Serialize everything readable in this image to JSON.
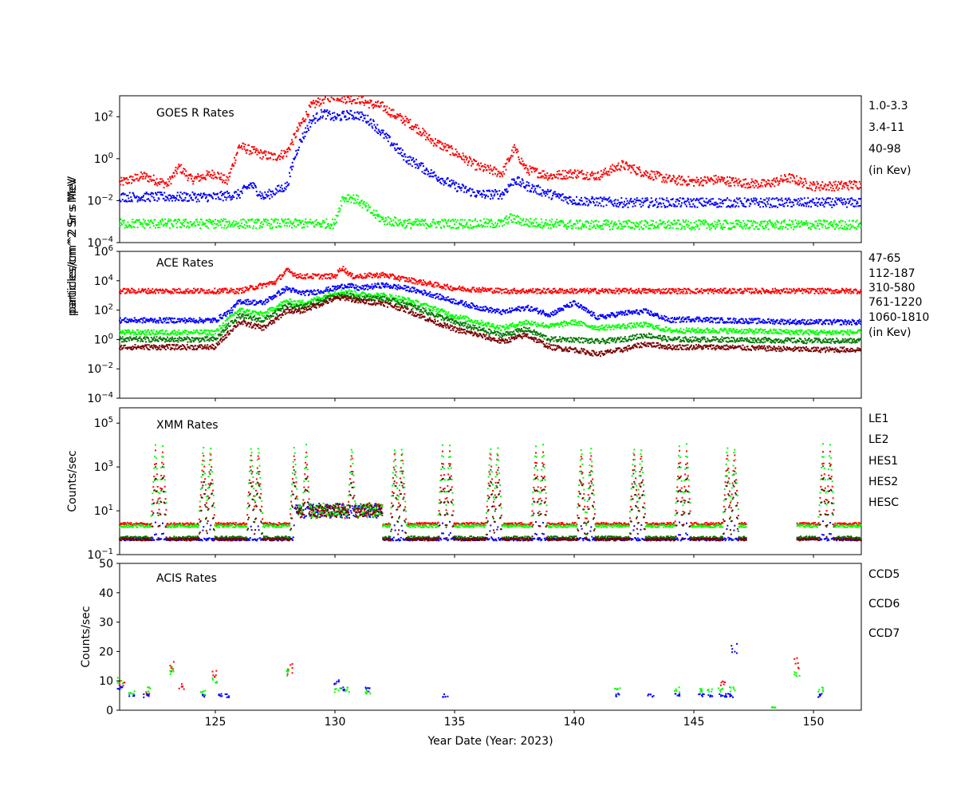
{
  "chart_data": [
    {
      "type": "scatter",
      "panel": "goes",
      "title": "GOES R Rates",
      "ylabel": "particles/cm^2 Sr s MeV",
      "yscale": "log",
      "ylim_exp": [
        -4,
        3
      ],
      "yticks_exp": [
        -4,
        -2,
        0,
        2
      ],
      "xlim": [
        121,
        152
      ],
      "legend": [
        "1.0-3.3",
        "3.4-11",
        "40-98"
      ],
      "legend_note": "(in Kev)",
      "colors": [
        "#ff0000",
        "#0000ff",
        "#00ff00"
      ],
      "series": [
        {
          "name": "1.0-3.3",
          "x": [
            121,
            122,
            123,
            123.5,
            124,
            125,
            125.5,
            126,
            127,
            127.5,
            128,
            128.5,
            129,
            129.5,
            130,
            130.5,
            131,
            131.5,
            132,
            132.5,
            133,
            133.5,
            134,
            135,
            136,
            137,
            137.5,
            138,
            139,
            140,
            141,
            142,
            143,
            144,
            145,
            146,
            147,
            148,
            149,
            150,
            151,
            152
          ],
          "y": [
            0.07,
            0.15,
            0.06,
            0.4,
            0.1,
            0.2,
            0.08,
            4,
            1.5,
            1.2,
            2,
            30,
            300,
            700,
            1000,
            700,
            700,
            400,
            300,
            120,
            60,
            25,
            8,
            2,
            0.4,
            0.2,
            3,
            0.3,
            0.15,
            0.2,
            0.15,
            0.5,
            0.2,
            0.1,
            0.08,
            0.1,
            0.07,
            0.06,
            0.12,
            0.05,
            0.05,
            0.06
          ]
        },
        {
          "name": "3.4-11",
          "x": [
            121,
            125,
            126,
            126.5,
            127,
            128,
            128.3,
            128.5,
            129,
            129.5,
            130,
            130.5,
            131,
            131.5,
            132,
            132.5,
            133,
            133.5,
            134,
            135,
            136,
            137,
            137.5,
            138,
            139,
            140,
            142,
            145,
            148,
            152
          ],
          "y": [
            0.015,
            0.015,
            0.02,
            0.06,
            0.015,
            0.05,
            1,
            5,
            60,
            150,
            90,
            120,
            120,
            60,
            15,
            4,
            1,
            0.5,
            0.2,
            0.05,
            0.02,
            0.02,
            0.1,
            0.05,
            0.02,
            0.01,
            0.008,
            0.008,
            0.008,
            0.008
          ]
        },
        {
          "name": "40-98",
          "x": [
            121,
            125,
            128,
            130,
            130.3,
            130.6,
            131,
            131.5,
            132,
            133,
            135,
            137,
            137.3,
            138,
            140,
            145,
            152
          ],
          "y": [
            0.0008,
            0.0008,
            0.0008,
            0.0008,
            0.012,
            0.015,
            0.01,
            0.003,
            0.0012,
            0.0008,
            0.0008,
            0.0008,
            0.0015,
            0.0009,
            0.0007,
            0.0007,
            0.0007
          ]
        }
      ]
    },
    {
      "type": "scatter",
      "panel": "ace",
      "title": "ACE Rates",
      "ylabel": "particles/cm^2 Sr s MeV",
      "yscale": "log",
      "ylim_exp": [
        -4,
        6
      ],
      "yticks_exp": [
        -4,
        -2,
        0,
        2,
        4,
        6
      ],
      "xlim": [
        121,
        152
      ],
      "legend": [
        "47-65",
        "112-187",
        "310-580",
        "761-1220",
        "1060-1810"
      ],
      "legend_note": "(in Kev)",
      "colors": [
        "#ff0000",
        "#0000ff",
        "#00ff00",
        "#007700",
        "#7a0000"
      ],
      "series": [
        {
          "name": "47-65",
          "x": [
            121,
            125,
            126,
            127,
            127.5,
            128,
            128.5,
            129,
            130,
            130.3,
            130.7,
            131,
            132,
            133,
            134,
            135,
            136,
            137,
            138,
            140,
            145,
            146,
            152
          ],
          "y": [
            2000,
            2000,
            2000,
            5000,
            8000,
            50000,
            20000,
            20000,
            20000,
            80000,
            20000,
            20000,
            25000,
            12000,
            6000,
            3000,
            2500,
            2000,
            2000,
            2000,
            2000,
            2000,
            2000
          ]
        },
        {
          "name": "112-187",
          "x": [
            121,
            125,
            125.7,
            126,
            127,
            127.5,
            128,
            128.5,
            129,
            130,
            130.5,
            131,
            132,
            133,
            134,
            135,
            136,
            137,
            138,
            139,
            140,
            141,
            142,
            143,
            144,
            145,
            146,
            150,
            152
          ],
          "y": [
            20,
            20,
            100,
            400,
            300,
            1000,
            3000,
            1500,
            1500,
            3000,
            5000,
            3000,
            5000,
            3000,
            1200,
            400,
            150,
            70,
            150,
            50,
            300,
            30,
            60,
            80,
            20,
            25,
            20,
            15,
            15
          ]
        },
        {
          "name": "310-580",
          "x": [
            121,
            125,
            125.7,
            126,
            127,
            127.5,
            128,
            128.5,
            129,
            130,
            130.5,
            131,
            132,
            133,
            134,
            135,
            136,
            137,
            138,
            139,
            140,
            141,
            142,
            143,
            144,
            146,
            150,
            152
          ],
          "y": [
            3,
            3,
            40,
            100,
            50,
            150,
            400,
            300,
            400,
            1500,
            1800,
            1200,
            1000,
            500,
            150,
            40,
            15,
            6,
            15,
            8,
            15,
            6,
            8,
            10,
            4,
            4,
            3,
            3
          ]
        },
        {
          "name": "761-1220",
          "x": [
            121,
            125,
            125.7,
            126,
            127,
            127.5,
            128,
            128.5,
            129,
            130,
            130.5,
            131,
            132,
            133,
            134,
            135,
            136,
            137,
            138,
            139,
            140,
            141,
            142,
            143,
            144,
            146,
            150,
            152
          ],
          "y": [
            1,
            1,
            15,
            40,
            20,
            60,
            200,
            150,
            250,
            900,
            1000,
            700,
            600,
            250,
            60,
            15,
            5,
            2,
            5,
            1,
            1,
            0.7,
            1,
            2,
            1,
            1,
            0.8,
            0.8
          ]
        },
        {
          "name": "1060-1810",
          "x": [
            121,
            125,
            125.7,
            126,
            127,
            127.5,
            128,
            128.5,
            129,
            130,
            130.5,
            131,
            132,
            133,
            134,
            135,
            136,
            137,
            138,
            139,
            140,
            141,
            142,
            143,
            144,
            146,
            150,
            152
          ],
          "y": [
            0.3,
            0.3,
            5,
            15,
            6,
            20,
            100,
            80,
            150,
            600,
            700,
            400,
            300,
            100,
            20,
            5,
            2,
            0.7,
            2,
            0.3,
            0.2,
            0.1,
            0.2,
            0.5,
            0.3,
            0.3,
            0.2,
            0.2
          ]
        }
      ]
    },
    {
      "type": "scatter",
      "panel": "xmm",
      "title": "XMM Rates",
      "ylabel": "Counts/sec",
      "yscale": "log",
      "ylim_exp": [
        -1,
        5.7
      ],
      "yticks_exp": [
        -1,
        1,
        3,
        5
      ],
      "xlim": [
        121,
        152
      ],
      "legend": [
        "LE1",
        "LE2",
        "HES1",
        "HES2",
        "HESC"
      ],
      "colors": [
        "#ff0000",
        "#0000ff",
        "#00ff00",
        "#007700",
        "#7a0000"
      ],
      "spike_days": [
        122.5,
        122.8,
        124.5,
        124.8,
        126.5,
        126.8,
        128.3,
        128.8,
        130.7,
        132.5,
        132.8,
        134.5,
        134.8,
        136.5,
        136.8,
        138.4,
        138.7,
        140.3,
        140.7,
        142.5,
        142.8,
        144.4,
        144.7,
        146.4,
        146.7,
        150.4,
        150.7
      ],
      "series": [
        {
          "name": "LE1",
          "baseline": 2.5,
          "peak": 5000
        },
        {
          "name": "LE2",
          "baseline": 0.5,
          "peak": 3
        },
        {
          "name": "HES1",
          "baseline": 2.0,
          "peak": 10000
        },
        {
          "name": "HES2",
          "baseline": 0.6,
          "peak": 1000
        },
        {
          "name": "HESC",
          "baseline": 0.5,
          "peak": 300
        }
      ],
      "gap": [
        147.2,
        149.3
      ]
    },
    {
      "type": "scatter",
      "panel": "acis",
      "title": "ACIS Rates",
      "ylabel": "Counts/sec",
      "yscale": "linear",
      "ylim": [
        0,
        50
      ],
      "yticks": [
        0,
        10,
        20,
        30,
        40,
        50
      ],
      "xlim": [
        121,
        152
      ],
      "xticks": [
        125,
        130,
        135,
        140,
        145,
        150
      ],
      "xlabel": "Year Date (Year: 2023)",
      "legend": [
        "CCD5",
        "CCD6",
        "CCD7"
      ],
      "colors": [
        "#ff0000",
        "#0000ff",
        "#00ff00"
      ],
      "series": [
        {
          "name": "CCD5",
          "x": [
            121.1,
            122.2,
            123.2,
            123.6,
            125.0,
            128.1,
            146.2,
            149.3
          ],
          "y": [
            9,
            6,
            15,
            8,
            12,
            14,
            9,
            16
          ]
        },
        {
          "name": "CCD6",
          "x": [
            121.0,
            121.5,
            122.1,
            124.5,
            125.2,
            125.5,
            130.1,
            130.3,
            131.4,
            134.6,
            141.8,
            143.2,
            144.3,
            145.3,
            145.7,
            146.2,
            146.4,
            146.6,
            146.7,
            150.3
          ],
          "y": [
            8,
            5,
            5,
            5,
            5,
            5,
            10,
            7,
            7,
            5,
            5,
            5,
            5,
            5,
            5,
            5,
            5,
            5,
            22,
            5
          ]
        },
        {
          "name": "CCD7",
          "x": [
            121.0,
            121.5,
            122.2,
            123.2,
            124.5,
            125.0,
            128.1,
            130.1,
            130.5,
            131.4,
            141.8,
            144.3,
            145.3,
            145.7,
            146.1,
            146.6,
            148.3,
            149.3,
            150.3
          ],
          "y": [
            10,
            6,
            7,
            13,
            6,
            10,
            12,
            7,
            7,
            6,
            7,
            7,
            7,
            7,
            7,
            7,
            1,
            13,
            7
          ]
        }
      ]
    }
  ]
}
